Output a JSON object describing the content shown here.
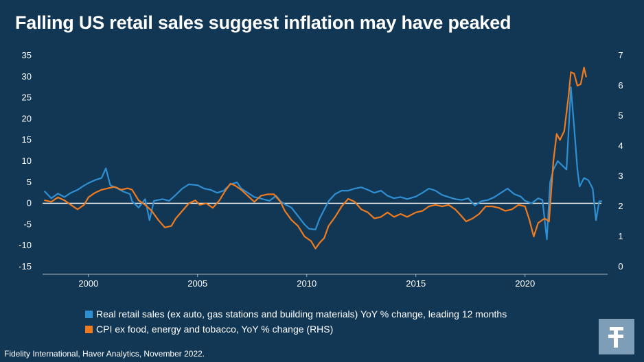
{
  "title": "Falling US retail sales suggest inflation may have peaked",
  "source": "Fidelity International, Haver Analytics, November 2022.",
  "logo": {
    "icon": "fidelity-f-logo-icon",
    "color": "#7e9eb8"
  },
  "chart_data": {
    "type": "line",
    "title": "Falling US retail sales suggest inflation may have peaked",
    "x_ticks": [
      2000,
      2005,
      2010,
      2015,
      2020
    ],
    "xlim": [
      1997.9,
      2023.5
    ],
    "y_left": {
      "ticks": [
        35,
        30,
        25,
        20,
        15,
        10,
        5,
        0,
        -5,
        -10,
        -15
      ],
      "lim": [
        -15,
        35
      ]
    },
    "y_right": {
      "ticks": [
        7,
        6,
        5,
        4,
        3,
        2,
        1,
        0
      ],
      "lim": [
        0,
        7
      ]
    },
    "grid": false,
    "legend_position": "bottom",
    "series": [
      {
        "name": "Real retail sales (ex auto, gas stations and building materials) YoY % change, leading 12 months",
        "color": "#2f8fd2",
        "axis": "left",
        "points": [
          [
            1998.0,
            2.8
          ],
          [
            1998.3,
            1.2
          ],
          [
            1998.6,
            2.3
          ],
          [
            1998.9,
            1.5
          ],
          [
            1999.2,
            2.5
          ],
          [
            1999.5,
            3.2
          ],
          [
            1999.8,
            4.2
          ],
          [
            2000.0,
            4.8
          ],
          [
            2000.3,
            5.5
          ],
          [
            2000.6,
            6.0
          ],
          [
            2000.8,
            8.3
          ],
          [
            2001.0,
            4.3
          ],
          [
            2001.3,
            3.6
          ],
          [
            2001.6,
            2.8
          ],
          [
            2001.9,
            2.2
          ],
          [
            2002.0,
            0.5
          ],
          [
            2002.3,
            -1.0
          ],
          [
            2002.6,
            1.0
          ],
          [
            2002.8,
            -4.0
          ],
          [
            2003.0,
            0.6
          ],
          [
            2003.4,
            1.0
          ],
          [
            2003.7,
            0.6
          ],
          [
            2004.0,
            2.0
          ],
          [
            2004.3,
            3.5
          ],
          [
            2004.6,
            4.5
          ],
          [
            2005.0,
            4.3
          ],
          [
            2005.3,
            3.5
          ],
          [
            2005.6,
            3.2
          ],
          [
            2005.9,
            2.5
          ],
          [
            2006.2,
            3.0
          ],
          [
            2006.5,
            4.5
          ],
          [
            2006.8,
            5.0
          ],
          [
            2007.0,
            3.5
          ],
          [
            2007.3,
            2.5
          ],
          [
            2007.6,
            1.5
          ],
          [
            2008.0,
            1.0
          ],
          [
            2008.3,
            0.6
          ],
          [
            2008.6,
            1.8
          ],
          [
            2008.8,
            0.5
          ],
          [
            2009.0,
            -0.2
          ],
          [
            2009.3,
            -1.0
          ],
          [
            2009.6,
            -3.0
          ],
          [
            2009.9,
            -5.0
          ],
          [
            2010.1,
            -6.0
          ],
          [
            2010.4,
            -6.2
          ],
          [
            2010.6,
            -3.5
          ],
          [
            2010.8,
            -1.5
          ],
          [
            2011.0,
            0.5
          ],
          [
            2011.3,
            2.2
          ],
          [
            2011.6,
            3.0
          ],
          [
            2011.9,
            3.0
          ],
          [
            2012.2,
            3.5
          ],
          [
            2012.5,
            3.8
          ],
          [
            2012.8,
            3.2
          ],
          [
            2013.1,
            2.5
          ],
          [
            2013.4,
            3.0
          ],
          [
            2013.7,
            1.8
          ],
          [
            2014.0,
            1.2
          ],
          [
            2014.3,
            1.5
          ],
          [
            2014.6,
            1.0
          ],
          [
            2015.0,
            1.6
          ],
          [
            2015.3,
            2.5
          ],
          [
            2015.6,
            3.5
          ],
          [
            2015.9,
            3.0
          ],
          [
            2016.2,
            2.0
          ],
          [
            2016.5,
            1.5
          ],
          [
            2016.8,
            1.0
          ],
          [
            2017.1,
            0.8
          ],
          [
            2017.4,
            1.2
          ],
          [
            2017.7,
            -0.5
          ],
          [
            2018.0,
            0.5
          ],
          [
            2018.3,
            0.8
          ],
          [
            2018.6,
            1.5
          ],
          [
            2018.9,
            2.5
          ],
          [
            2019.2,
            3.5
          ],
          [
            2019.5,
            2.2
          ],
          [
            2019.8,
            1.6
          ],
          [
            2020.0,
            0.6
          ],
          [
            2020.3,
            0.0
          ],
          [
            2020.6,
            1.2
          ],
          [
            2020.8,
            0.8
          ],
          [
            2021.0,
            -8.5
          ],
          [
            2021.15,
            5.0
          ],
          [
            2021.3,
            8.0
          ],
          [
            2021.5,
            10.0
          ],
          [
            2021.7,
            9.0
          ],
          [
            2021.9,
            8.0
          ],
          [
            2022.0,
            17.5
          ],
          [
            2022.1,
            27.5
          ],
          [
            2022.25,
            18.0
          ],
          [
            2022.4,
            8.0
          ],
          [
            2022.5,
            4.0
          ],
          [
            2022.7,
            6.0
          ],
          [
            2022.9,
            5.5
          ],
          [
            2023.1,
            3.5
          ],
          [
            2023.25,
            -4.0
          ],
          [
            2023.4,
            0.5
          ],
          [
            2023.5,
            0.5
          ]
        ]
      },
      {
        "name": "CPI ex food, energy and tobacco, YoY % change (RHS)",
        "color": "#f07b1f",
        "axis": "right",
        "points": [
          [
            1998.0,
            2.2
          ],
          [
            1998.3,
            2.15
          ],
          [
            1998.6,
            2.3
          ],
          [
            1998.9,
            2.2
          ],
          [
            1999.2,
            2.05
          ],
          [
            1999.5,
            1.9
          ],
          [
            1999.8,
            2.05
          ],
          [
            2000.0,
            2.3
          ],
          [
            2000.3,
            2.45
          ],
          [
            2000.6,
            2.55
          ],
          [
            2000.9,
            2.6
          ],
          [
            2001.2,
            2.65
          ],
          [
            2001.5,
            2.55
          ],
          [
            2001.8,
            2.6
          ],
          [
            2002.0,
            2.55
          ],
          [
            2002.3,
            2.2
          ],
          [
            2002.6,
            2.05
          ],
          [
            2002.9,
            1.85
          ],
          [
            2003.2,
            1.55
          ],
          [
            2003.5,
            1.3
          ],
          [
            2003.8,
            1.35
          ],
          [
            2004.0,
            1.6
          ],
          [
            2004.3,
            1.85
          ],
          [
            2004.6,
            2.1
          ],
          [
            2004.9,
            2.2
          ],
          [
            2005.1,
            2.05
          ],
          [
            2005.4,
            2.1
          ],
          [
            2005.7,
            1.95
          ],
          [
            2006.0,
            2.2
          ],
          [
            2006.3,
            2.55
          ],
          [
            2006.5,
            2.75
          ],
          [
            2006.7,
            2.7
          ],
          [
            2007.0,
            2.55
          ],
          [
            2007.3,
            2.35
          ],
          [
            2007.6,
            2.15
          ],
          [
            2007.9,
            2.35
          ],
          [
            2008.2,
            2.4
          ],
          [
            2008.5,
            2.4
          ],
          [
            2008.8,
            2.15
          ],
          [
            2009.0,
            1.85
          ],
          [
            2009.3,
            1.55
          ],
          [
            2009.6,
            1.35
          ],
          [
            2009.9,
            1.0
          ],
          [
            2010.2,
            0.85
          ],
          [
            2010.4,
            0.6
          ],
          [
            2010.6,
            0.8
          ],
          [
            2010.8,
            0.95
          ],
          [
            2011.0,
            1.35
          ],
          [
            2011.3,
            1.65
          ],
          [
            2011.6,
            2.0
          ],
          [
            2011.9,
            2.25
          ],
          [
            2012.2,
            2.15
          ],
          [
            2012.5,
            1.9
          ],
          [
            2012.8,
            1.8
          ],
          [
            2013.1,
            1.6
          ],
          [
            2013.4,
            1.65
          ],
          [
            2013.7,
            1.8
          ],
          [
            2014.0,
            1.65
          ],
          [
            2014.3,
            1.75
          ],
          [
            2014.6,
            1.65
          ],
          [
            2015.0,
            1.8
          ],
          [
            2015.3,
            1.85
          ],
          [
            2015.6,
            2.0
          ],
          [
            2015.9,
            2.05
          ],
          [
            2016.2,
            2.0
          ],
          [
            2016.5,
            2.05
          ],
          [
            2016.8,
            1.9
          ],
          [
            2017.0,
            1.75
          ],
          [
            2017.3,
            1.5
          ],
          [
            2017.6,
            1.6
          ],
          [
            2017.9,
            1.75
          ],
          [
            2018.2,
            2.0
          ],
          [
            2018.5,
            2.0
          ],
          [
            2018.8,
            1.95
          ],
          [
            2019.1,
            1.85
          ],
          [
            2019.4,
            1.9
          ],
          [
            2019.7,
            2.05
          ],
          [
            2020.0,
            2.0
          ],
          [
            2020.2,
            1.55
          ],
          [
            2020.4,
            1.0
          ],
          [
            2020.6,
            1.45
          ],
          [
            2020.9,
            1.6
          ],
          [
            2021.1,
            1.5
          ],
          [
            2021.3,
            3.5
          ],
          [
            2021.45,
            4.4
          ],
          [
            2021.6,
            4.2
          ],
          [
            2021.8,
            4.5
          ],
          [
            2022.0,
            5.7
          ],
          [
            2022.1,
            6.45
          ],
          [
            2022.25,
            6.4
          ],
          [
            2022.4,
            6.0
          ],
          [
            2022.55,
            6.05
          ],
          [
            2022.7,
            6.6
          ],
          [
            2022.8,
            6.3
          ]
        ]
      }
    ]
  }
}
